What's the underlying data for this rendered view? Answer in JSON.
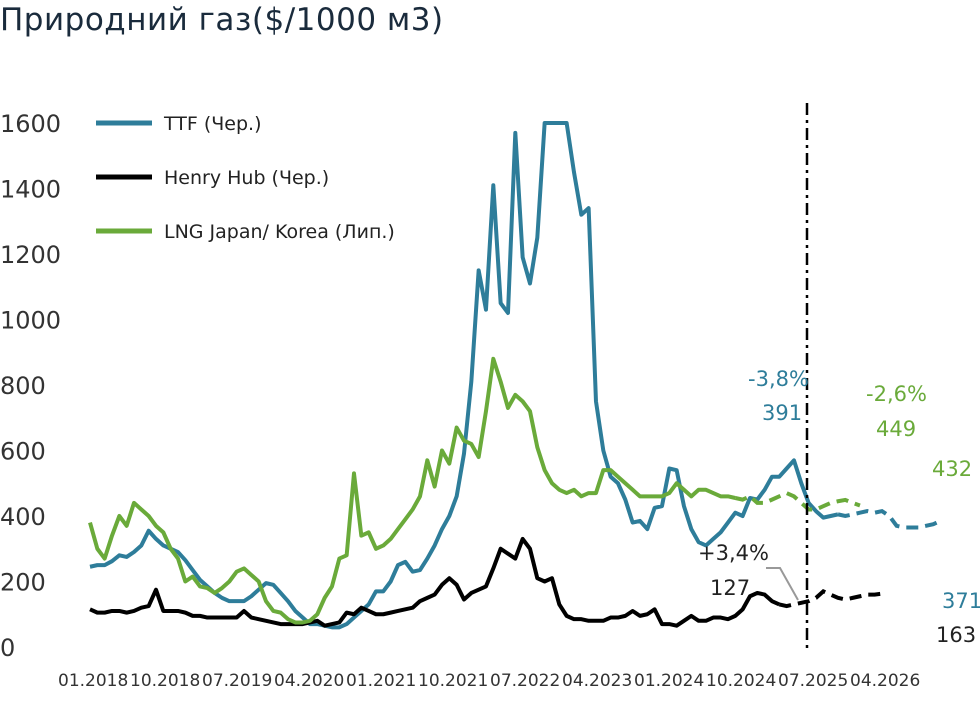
{
  "title": "Природний газ($/1000 м3)",
  "chart_data": {
    "type": "line",
    "title": "Природний газ($/1000 м3)",
    "ylim": [
      0,
      1600
    ],
    "yticks": [
      "0",
      "200",
      "400",
      "600",
      "800",
      "1000",
      "1200",
      "1400",
      "1600"
    ],
    "xticks": [
      "01.2018",
      "10.2018",
      "07.2019",
      "04.2020",
      "01.2021",
      "10.2021",
      "07.2022",
      "04.2023",
      "01.2024",
      "10.2024",
      "07.2025",
      "04.2026"
    ],
    "forecast_start": "07.2025",
    "colors": {
      "TTF": "#2e7d9a",
      "Henry Hub": "#000000",
      "LNG": "#6aaa3a"
    },
    "legend": [
      {
        "label": "TTF  (Чер.)",
        "color": "#2e7d9a"
      },
      {
        "label": "Henry Hub (Чер.)",
        "color": "#000000"
      },
      {
        "label": "LNG Japan/ Korea  (Лип.)",
        "color": "#6aaa3a"
      }
    ],
    "series": [
      {
        "name": "TTF  (Чер.)",
        "color": "#2e7d9a",
        "x_start": "01.2018",
        "values": [
          245,
          250,
          250,
          262,
          280,
          275,
          290,
          310,
          355,
          330,
          310,
          300,
          290,
          265,
          235,
          205,
          185,
          165,
          150,
          140,
          140,
          140,
          155,
          175,
          195,
          190,
          165,
          140,
          110,
          90,
          70,
          70,
          65,
          60,
          60,
          70,
          90,
          110,
          130,
          170,
          170,
          200,
          250,
          260,
          230,
          235,
          270,
          310,
          360,
          400,
          460,
          590,
          810,
          1150,
          1030,
          1410,
          1050,
          1020,
          1570,
          1190,
          1110,
          1250,
          1600,
          1600,
          1600,
          1600,
          1450,
          1320,
          1340,
          750,
          600,
          520,
          500,
          450,
          380,
          385,
          360,
          425,
          430,
          545,
          540,
          430,
          360,
          320,
          310,
          330,
          350,
          380,
          410,
          400,
          455,
          450,
          480,
          520,
          520,
          545,
          570,
          500,
          440,
          415,
          395,
          400,
          405,
          400,
          405,
          410,
          415,
          410,
          415,
          400,
          370,
          365,
          365,
          365,
          370,
          375,
          385
        ],
        "forecast_from_index": 102
      },
      {
        "name": "Henry Hub (Чер.)",
        "color": "#000000",
        "x_start": "01.2018",
        "values": [
          115,
          105,
          105,
          110,
          110,
          105,
          110,
          120,
          125,
          175,
          110,
          110,
          110,
          105,
          95,
          95,
          90,
          90,
          90,
          90,
          90,
          110,
          90,
          85,
          80,
          75,
          70,
          70,
          70,
          70,
          75,
          80,
          65,
          70,
          75,
          105,
          100,
          120,
          110,
          100,
          100,
          105,
          110,
          115,
          120,
          140,
          150,
          160,
          190,
          210,
          190,
          145,
          165,
          175,
          185,
          240,
          300,
          285,
          270,
          330,
          300,
          210,
          200,
          210,
          130,
          95,
          85,
          85,
          80,
          80,
          80,
          90,
          90,
          95,
          110,
          95,
          100,
          115,
          70,
          70,
          65,
          80,
          95,
          80,
          80,
          90,
          90,
          85,
          95,
          115,
          155,
          165,
          160,
          140,
          130,
          125,
          130,
          135,
          140,
          150,
          170,
          160,
          150,
          145,
          150,
          155,
          160,
          160,
          163
        ],
        "forecast_from_index": 94
      },
      {
        "name": "LNG Japan/ Korea  (Лип.)",
        "color": "#6aaa3a",
        "x_start": "01.2018",
        "values": [
          380,
          300,
          270,
          340,
          400,
          370,
          440,
          420,
          400,
          370,
          350,
          300,
          270,
          200,
          215,
          185,
          180,
          165,
          180,
          200,
          230,
          240,
          220,
          200,
          140,
          110,
          105,
          85,
          75,
          75,
          80,
          100,
          150,
          185,
          270,
          280,
          530,
          340,
          350,
          300,
          310,
          330,
          360,
          390,
          420,
          460,
          570,
          490,
          600,
          560,
          670,
          630,
          620,
          580,
          720,
          880,
          810,
          730,
          770,
          750,
          720,
          610,
          540,
          500,
          480,
          470,
          480,
          460,
          470,
          470,
          540,
          540,
          520,
          500,
          480,
          460,
          460,
          460,
          460,
          470,
          500,
          480,
          460,
          480,
          480,
          470,
          460,
          460,
          455,
          450,
          460,
          440,
          440,
          450,
          460,
          470,
          460,
          440,
          420,
          420,
          430,
          440,
          445,
          449,
          440,
          432
        ],
        "forecast_from_index": 88
      }
    ],
    "annotations": [
      {
        "text": "-3,8%",
        "color": "#2e7d9a"
      },
      {
        "text": "391",
        "color": "#2e7d9a"
      },
      {
        "text": "-2,6%",
        "color": "#6aaa3a"
      },
      {
        "text": "449",
        "color": "#6aaa3a"
      },
      {
        "text": "432",
        "color": "#6aaa3a"
      },
      {
        "text": "+3,4%",
        "color": "#222222"
      },
      {
        "text": "127",
        "color": "#222222"
      },
      {
        "text": "371",
        "color": "#2e7d9a"
      },
      {
        "text": "163",
        "color": "#222222"
      }
    ]
  }
}
